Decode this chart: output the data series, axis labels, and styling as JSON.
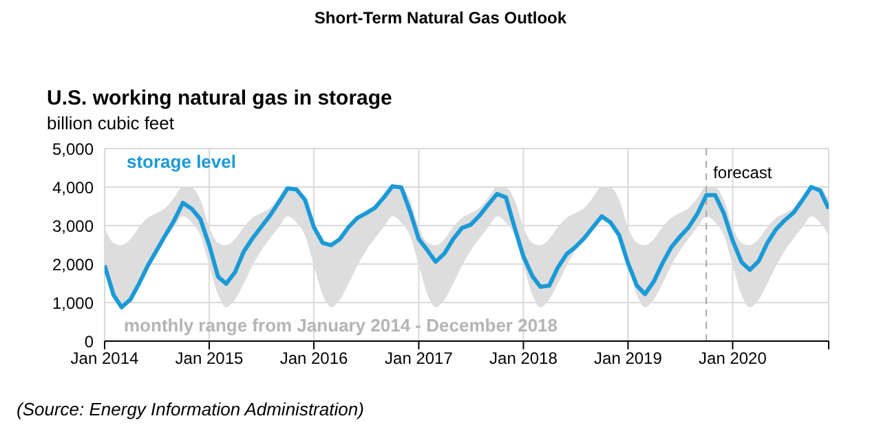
{
  "chart_data": {
    "type": "line",
    "title": "Short-Term Natural Gas Outlook",
    "subtitle": "U.S. working natural gas in storage",
    "ylabel": "billion cubic feet",
    "x": [
      "2014-01",
      "2014-02",
      "2014-03",
      "2014-04",
      "2014-05",
      "2014-06",
      "2014-07",
      "2014-08",
      "2014-09",
      "2014-10",
      "2014-11",
      "2014-12",
      "2015-01",
      "2015-02",
      "2015-03",
      "2015-04",
      "2015-05",
      "2015-06",
      "2015-07",
      "2015-08",
      "2015-09",
      "2015-10",
      "2015-11",
      "2015-12",
      "2016-01",
      "2016-02",
      "2016-03",
      "2016-04",
      "2016-05",
      "2016-06",
      "2016-07",
      "2016-08",
      "2016-09",
      "2016-10",
      "2016-11",
      "2016-12",
      "2017-01",
      "2017-02",
      "2017-03",
      "2017-04",
      "2017-05",
      "2017-06",
      "2017-07",
      "2017-08",
      "2017-09",
      "2017-10",
      "2017-11",
      "2017-12",
      "2018-01",
      "2018-02",
      "2018-03",
      "2018-04",
      "2018-05",
      "2018-06",
      "2018-07",
      "2018-08",
      "2018-09",
      "2018-10",
      "2018-11",
      "2018-12",
      "2019-01",
      "2019-02",
      "2019-03",
      "2019-04",
      "2019-05",
      "2019-06",
      "2019-07",
      "2019-08",
      "2019-09",
      "2019-10",
      "2019-11",
      "2019-12",
      "2020-01",
      "2020-02",
      "2020-03",
      "2020-04",
      "2020-05",
      "2020-06",
      "2020-07",
      "2020-08",
      "2020-09",
      "2020-10",
      "2020-11",
      "2020-12"
    ],
    "series": [
      {
        "name": "storage level",
        "color": "#1a9ad6",
        "values": [
          1965,
          1200,
          880,
          1080,
          1490,
          1965,
          2350,
          2750,
          3140,
          3590,
          3435,
          3165,
          2490,
          1670,
          1490,
          1790,
          2320,
          2670,
          2960,
          3260,
          3610,
          3965,
          3940,
          3670,
          2960,
          2550,
          2490,
          2650,
          2960,
          3200,
          3320,
          3460,
          3730,
          4020,
          3990,
          3380,
          2650,
          2350,
          2060,
          2280,
          2650,
          2940,
          3020,
          3260,
          3550,
          3820,
          3730,
          2960,
          2200,
          1690,
          1410,
          1440,
          1910,
          2260,
          2440,
          2670,
          2960,
          3240,
          3080,
          2750,
          2020,
          1440,
          1220,
          1550,
          2020,
          2440,
          2710,
          2960,
          3320,
          3790,
          3790,
          3320,
          2610,
          2050,
          1850,
          2080,
          2550,
          2910,
          3140,
          3340,
          3670,
          4000,
          3910,
          3440
        ],
        "lower": [
          1965,
          1200,
          880,
          1080,
          1490,
          1965,
          2350,
          2670,
          2960,
          3240,
          3080,
          2750,
          1965,
          1200,
          880,
          1080,
          1490,
          1965,
          2350,
          2670,
          2960,
          3240,
          3080,
          2750,
          1965,
          1200,
          880,
          1080,
          1490,
          1965,
          2350,
          2670,
          2960,
          3240,
          3080,
          2750,
          1965,
          1200,
          880,
          1080,
          1490,
          1965,
          2350,
          2670,
          2960,
          3240,
          3080,
          2750,
          1965,
          1200,
          880,
          1080,
          1490,
          1965,
          2350,
          2670,
          2960,
          3240,
          3080,
          2750,
          1965,
          1200,
          880,
          1080,
          1490,
          1965,
          2350,
          2670,
          2960,
          3240,
          3080,
          2750,
          1965,
          1200,
          880,
          1080,
          1490,
          1965,
          2350,
          2670,
          2960,
          3240,
          3080,
          2750
        ],
        "upper": [
          2960,
          2550,
          2490,
          2650,
          2960,
          3200,
          3320,
          3460,
          3730,
          4020,
          3990,
          3670,
          2960,
          2550,
          2490,
          2650,
          2960,
          3200,
          3320,
          3460,
          3730,
          4020,
          3990,
          3670,
          2960,
          2550,
          2490,
          2650,
          2960,
          3200,
          3320,
          3460,
          3730,
          4020,
          3990,
          3670,
          2960,
          2550,
          2490,
          2650,
          2960,
          3200,
          3320,
          3460,
          3730,
          4020,
          3990,
          3670,
          2960,
          2550,
          2490,
          2650,
          2960,
          3200,
          3320,
          3460,
          3730,
          4020,
          3990,
          3670,
          2960,
          2550,
          2490,
          2650,
          2960,
          3200,
          3320,
          3460,
          3730,
          4020,
          3990,
          3670,
          2960,
          2550,
          2490,
          2650,
          2960,
          3200,
          3320,
          3460,
          3730,
          4020,
          3990,
          3670
        ]
      }
    ],
    "xlim": [
      "2014-01",
      "2020-12"
    ],
    "xticks": [
      {
        "value": "2014-01",
        "label": "Jan 2014"
      },
      {
        "value": "2015-01",
        "label": "Jan 2015"
      },
      {
        "value": "2016-01",
        "label": "Jan 2016"
      },
      {
        "value": "2017-01",
        "label": "Jan 2017"
      },
      {
        "value": "2018-01",
        "label": "Jan 2018"
      },
      {
        "value": "2019-01",
        "label": "Jan 2019"
      },
      {
        "value": "2020-01",
        "label": "Jan 2020"
      },
      {
        "value": "2020-12",
        "label": null
      }
    ],
    "ylim": [
      0,
      5000
    ],
    "yticks": [
      {
        "value": 0,
        "label": "0"
      },
      {
        "value": 1000,
        "label": "1,000"
      },
      {
        "value": 2000,
        "label": "2,000"
      },
      {
        "value": 3000,
        "label": "3,000"
      },
      {
        "value": 4000,
        "label": "4,000"
      },
      {
        "value": 5000,
        "label": "5,000"
      }
    ],
    "ref_lines": [
      {
        "axis": "x",
        "value": "2019-10",
        "label": "forecast",
        "color": "#a6a6a6",
        "line_style": "dashed"
      }
    ],
    "annotations": [
      "monthly range from January 2014 - December 2018",
      "(Source: Energy Information Administration)"
    ],
    "grid": true,
    "marker": "none",
    "line_style": "solid"
  }
}
